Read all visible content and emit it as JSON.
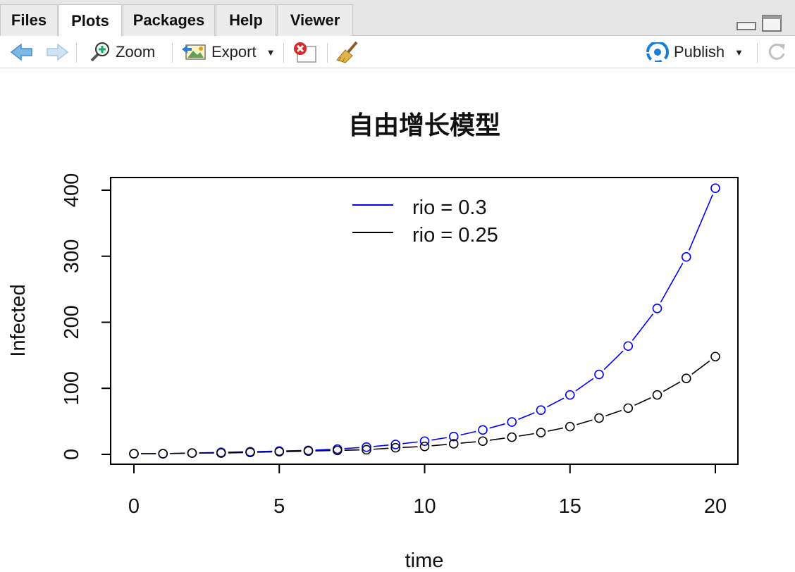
{
  "tabs": [
    {
      "label": "Files",
      "active": false
    },
    {
      "label": "Plots",
      "active": true
    },
    {
      "label": "Packages",
      "active": false
    },
    {
      "label": "Help",
      "active": false
    },
    {
      "label": "Viewer",
      "active": false
    }
  ],
  "toolbar": {
    "zoom_label": "Zoom",
    "export_label": "Export",
    "publish_label": "Publish",
    "icons": [
      "back-arrow-icon",
      "forward-arrow-icon",
      "zoom-icon",
      "export-icon",
      "remove-plot-icon",
      "broom-icon",
      "publish-icon",
      "refresh-icon"
    ]
  },
  "colors": {
    "series_blue": "#0000ff",
    "series_black": "#000000",
    "tab_bg": "#e6e6e6",
    "publish_blue": "#1a7fd4"
  },
  "chart_data": {
    "type": "line",
    "title": "自由增长模型",
    "xlabel": "time",
    "ylabel": "Infected",
    "xlim": [
      0,
      20
    ],
    "ylim": [
      0,
      400
    ],
    "x_ticks": [
      "0",
      "5",
      "10",
      "15",
      "20"
    ],
    "y_ticks": [
      "0",
      "100",
      "200",
      "300",
      "400"
    ],
    "x": [
      0,
      1,
      2,
      3,
      4,
      5,
      6,
      7,
      8,
      9,
      10,
      11,
      12,
      13,
      14,
      15,
      16,
      17,
      18,
      19,
      20
    ],
    "series": [
      {
        "name": "rio = 0.3",
        "color": "#0000ff",
        "values": [
          1,
          1,
          2,
          3,
          4,
          5,
          6,
          8,
          11,
          15,
          20,
          27,
          37,
          49,
          67,
          90,
          121,
          164,
          221,
          299,
          403
        ]
      },
      {
        "name": "rio = 0.25",
        "color": "#000000",
        "values": [
          1,
          1,
          2,
          2,
          3,
          4,
          5,
          6,
          7,
          10,
          12,
          16,
          20,
          26,
          33,
          42,
          55,
          70,
          90,
          115,
          148
        ]
      }
    ],
    "legend_position": "top",
    "grid": false
  }
}
